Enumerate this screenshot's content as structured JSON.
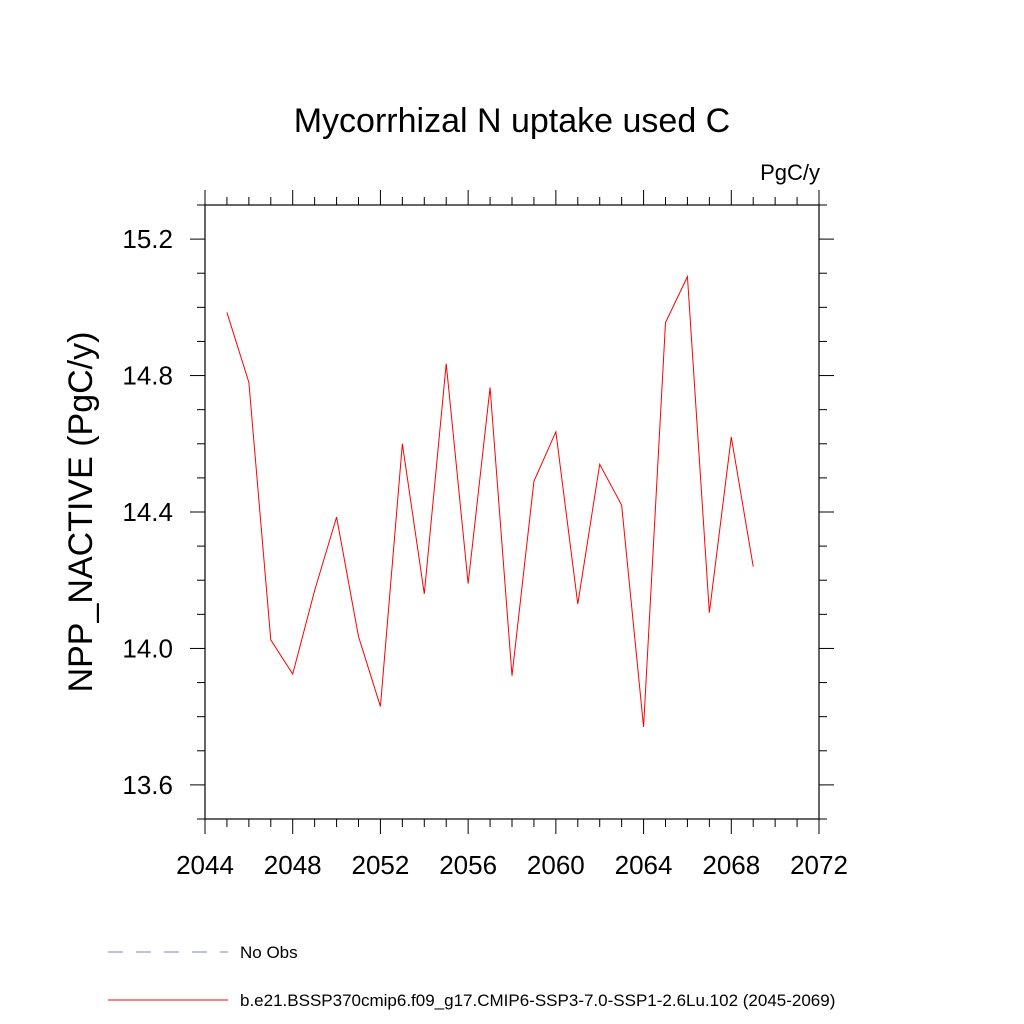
{
  "chart_data": {
    "type": "line",
    "title": "Mycorrhizal N uptake used C",
    "units_label": "PgC/y",
    "xlabel": "",
    "ylabel": "NPP_NACTIVE  (PgC/y)",
    "xlim": [
      2044,
      2072
    ],
    "ylim": [
      13.5,
      15.3
    ],
    "x_ticks": [
      2044,
      2048,
      2052,
      2056,
      2060,
      2064,
      2068,
      2072
    ],
    "x_tick_labels": [
      "2044",
      "2048",
      "2052",
      "2056",
      "2060",
      "2064",
      "2068",
      "2072"
    ],
    "y_ticks": [
      13.6,
      14.0,
      14.4,
      14.8,
      15.2
    ],
    "y_tick_labels": [
      "13.6",
      "14.0",
      "14.4",
      "14.8",
      "15.2"
    ],
    "series": [
      {
        "name": "b.e21.BSSP370cmip6.f09_g17.CMIP6-SSP3-7.0-SSP1-2.6Lu.102 (2045-2069)",
        "color": "#ff0000",
        "x": [
          2045,
          2046,
          2047,
          2048,
          2049,
          2050,
          2051,
          2052,
          2053,
          2054,
          2055,
          2056,
          2057,
          2058,
          2059,
          2060,
          2061,
          2062,
          2063,
          2064,
          2065,
          2066,
          2067,
          2068,
          2069
        ],
        "values": [
          14.985,
          14.78,
          14.025,
          13.925,
          14.17,
          14.385,
          14.035,
          13.83,
          14.6,
          14.16,
          14.835,
          14.19,
          14.765,
          13.92,
          14.49,
          14.635,
          14.13,
          14.54,
          14.42,
          13.77,
          14.955,
          15.09,
          14.105,
          14.62,
          14.24
        ]
      }
    ],
    "legend": [
      {
        "label": "No Obs",
        "style": "dashed",
        "color": "#8080c0"
      },
      {
        "label": "b.e21.BSSP370cmip6.f09_g17.CMIP6-SSP3-7.0-SSP1-2.6Lu.102 (2045-2069)",
        "style": "solid",
        "color": "#ff0000"
      }
    ]
  }
}
